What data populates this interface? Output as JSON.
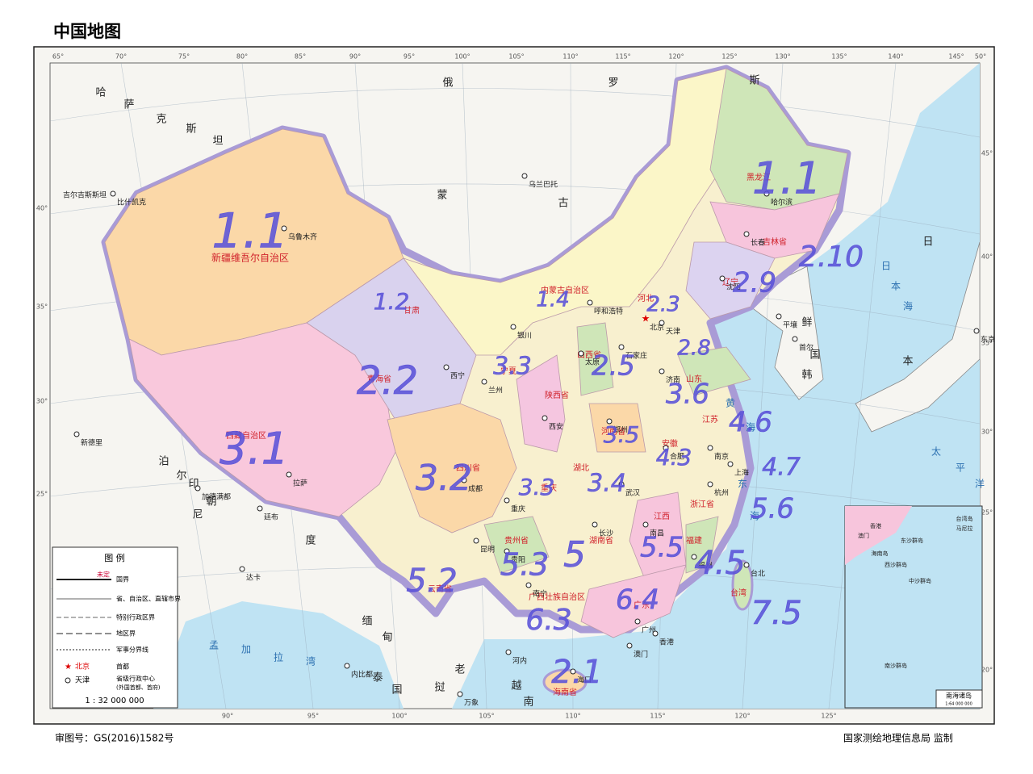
{
  "header": {
    "title": "中国地图"
  },
  "footer": {
    "approval": "审图号：GS(2016)1582号",
    "publisher": "国家测绘地理信息局 监制"
  },
  "graticule": {
    "top": [
      "65°",
      "70°",
      "75°",
      "80°",
      "85°",
      "90°",
      "95°",
      "100°",
      "105°",
      "110°",
      "115°",
      "120°",
      "125°",
      "130°",
      "135°",
      "140°",
      "145°",
      "50°"
    ],
    "bottom": [
      "90°",
      "95°",
      "100°",
      "105°",
      "110°",
      "115°",
      "120°",
      "125°"
    ],
    "left": [
      "40°",
      "35°",
      "30°",
      "25°"
    ],
    "right": [
      "45°",
      "40°",
      "35°",
      "30°",
      "25°",
      "20°"
    ]
  },
  "countries": [
    "俄",
    "罗",
    "斯",
    "蒙",
    "古",
    "哈",
    "萨",
    "克",
    "斯",
    "坦",
    "吉尔吉斯斯坦",
    "印",
    "度",
    "尼",
    "泊",
    "尔",
    "朝",
    "鲜",
    "韩",
    "国",
    "日",
    "本",
    "老",
    "挝",
    "泰",
    "国",
    "越",
    "南",
    "缅",
    "甸"
  ],
  "seas": [
    "黄",
    "海",
    "东",
    "海",
    "日",
    "本",
    "海",
    "孟",
    "加",
    "拉",
    "湾",
    "太",
    "平",
    "洋"
  ],
  "provinces": [
    "新疆维吾尔自治区",
    "西藏自治区",
    "青海省",
    "甘肃",
    "四川省",
    "内蒙古自治区",
    "黑龙江",
    "吉林省",
    "辽宁",
    "河北",
    "山西省",
    "陕西省",
    "宁夏",
    "河南省",
    "山东",
    "江苏",
    "安徽",
    "湖北",
    "湖南省",
    "江西",
    "浙江省",
    "福建",
    "广东",
    "广西壮族自治区",
    "贵州省",
    "云南省",
    "海南省",
    "台湾",
    "重庆"
  ],
  "cities": [
    "乌鲁木齐",
    "拉萨",
    "西宁",
    "兰州",
    "银川",
    "呼和浩特",
    "成都",
    "重庆",
    "昆明",
    "贵阳",
    "南宁",
    "长沙",
    "武汉",
    "南昌",
    "福州",
    "杭州",
    "上海",
    "南京",
    "合肥",
    "郑州",
    "济南",
    "石家庄",
    "太原",
    "西安",
    "北京",
    "天津",
    "沈阳",
    "长春",
    "哈尔滨",
    "广州",
    "海口",
    "台北",
    "香港",
    "澳门",
    "乌兰巴托",
    "平壤",
    "首尔",
    "东京",
    "新德里",
    "加德满都",
    "廷布",
    "达卡",
    "内比都",
    "万象",
    "河内",
    "比什凯克"
  ],
  "legend": {
    "title": "图 例",
    "undetermined": "未定",
    "items": [
      "国界",
      "省、自治区、直辖市界",
      "特别行政区界",
      "地区界",
      "军事分界线"
    ],
    "capital": "首都",
    "capital_sample": "北京",
    "provincial": "省级行政中心",
    "provincial_note": "(外国首都、首府)",
    "provincial_sample": "天津",
    "scale": "1 : 32 000 000"
  },
  "inset": {
    "title": "南海诸岛",
    "scale": "1:64 000 000",
    "labels": [
      "海南岛",
      "东沙群岛",
      "西沙群岛",
      "中沙群岛",
      "南沙群岛",
      "马尼拉",
      "台湾岛",
      "香港",
      "澳门"
    ]
  },
  "annotations": [
    "1.1",
    "1.2",
    "1.4",
    "2.2",
    "3.1",
    "3.2",
    "3.3",
    "3.3",
    "3.4",
    "3.5",
    "4.3",
    "4.6",
    "4.7",
    "5.6",
    "4.5",
    "5.5",
    "5.2",
    "5.3",
    "5",
    "6.3",
    "6.4",
    "2.1",
    "7.5",
    "1.1",
    "2.10",
    "2.9",
    "3.6",
    "2.8",
    "2.3",
    "2.5"
  ]
}
